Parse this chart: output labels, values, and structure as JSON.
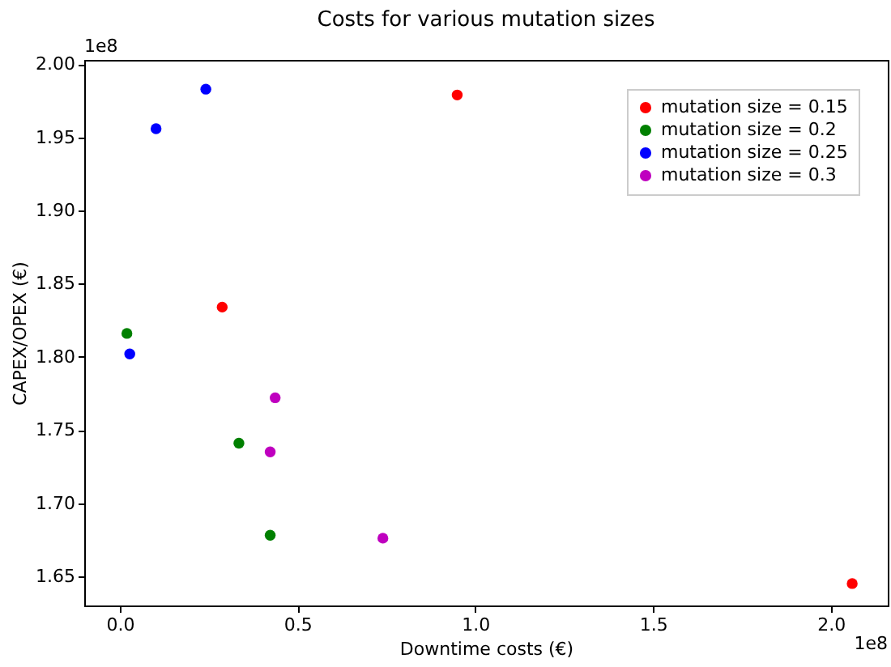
{
  "chart_data": {
    "type": "scatter",
    "title": "Costs for various mutation sizes",
    "xlabel": "Downtime costs (€)",
    "ylabel": "CAPEX/OPEX (€)",
    "annotations": [
      "1e8",
      "1e8"
    ],
    "series": [
      {
        "name": "mutation size = 0.15",
        "color": "#ff0000",
        "x": [
          0.949,
          0.288,
          2.06
        ],
        "values": [
          1.979,
          1.834,
          1.645
        ]
      },
      {
        "name": "mutation size = 0.2",
        "color": "#008000",
        "x": [
          0.02,
          0.335,
          0.423
        ],
        "values": [
          1.816,
          1.741,
          1.678
        ]
      },
      {
        "name": "mutation size = 0.25",
        "color": "#0000ff",
        "x": [
          0.242,
          0.102,
          0.028
        ],
        "values": [
          1.983,
          1.956,
          1.802
        ]
      },
      {
        "name": "mutation size = 0.3",
        "color": "#bf00bf",
        "x": [
          0.437,
          0.423,
          0.74
        ],
        "values": [
          1.772,
          1.735,
          1.676
        ]
      }
    ],
    "xlim": [
      -0.1,
      2.16
    ],
    "ylim": [
      1.63,
      2.003
    ],
    "xticks": [
      {
        "value": 0,
        "label": "0.0"
      },
      0.5,
      {
        "value": 1,
        "label": "1.0"
      },
      1.5,
      {
        "value": 2,
        "label": "2.0"
      }
    ],
    "yticks": [
      1.65,
      {
        "value": 1.7,
        "label": "1.70"
      },
      1.75,
      {
        "value": 1.8,
        "label": "1.80"
      },
      1.85,
      {
        "value": 1.9,
        "label": "1.90"
      },
      1.95,
      {
        "value": 2,
        "label": "2.00"
      }
    ],
    "legend": "top right",
    "marker": "circle",
    "grid": false
  }
}
